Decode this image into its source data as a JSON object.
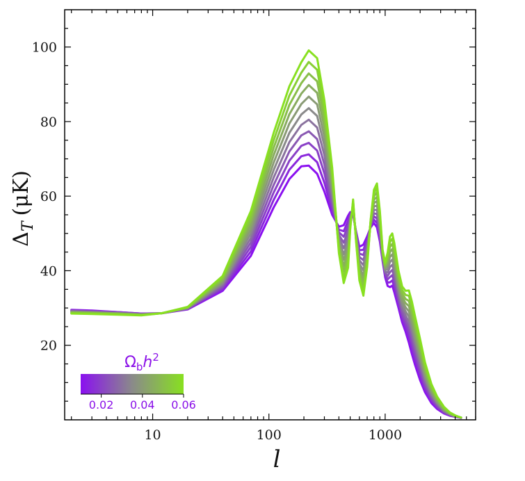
{
  "chart_data": {
    "type": "line",
    "x_scale": "log",
    "xlim": [
      1.75,
      6000
    ],
    "ylim": [
      0,
      110
    ],
    "xlabel": "l",
    "ylabel_main": "Δ",
    "ylabel_sub": "T",
    "ylabel_units": "(μK)",
    "x_ticks": [
      {
        "value": 10,
        "label": "10"
      },
      {
        "value": 100,
        "label": "100"
      },
      {
        "value": 1000,
        "label": "1000"
      }
    ],
    "y_ticks": [
      {
        "value": 20,
        "label": "20"
      },
      {
        "value": 40,
        "label": "40"
      },
      {
        "value": 60,
        "label": "60"
      },
      {
        "value": 80,
        "label": "80"
      },
      {
        "value": 100,
        "label": "100"
      }
    ],
    "colorbar": {
      "label_main": "Ω",
      "label_sub": "b",
      "label_var": "h",
      "label_sup": "2",
      "range": [
        0.01,
        0.06
      ],
      "color_low": "#8a10f0",
      "color_mid": "#8a8a8a",
      "color_high": "#88e020",
      "ticks": [
        {
          "value": 0.02,
          "label": "0.02"
        },
        {
          "value": 0.04,
          "label": "0.04"
        },
        {
          "value": 0.06,
          "label": "0.06"
        }
      ]
    },
    "series_x": [
      2,
      3,
      5,
      8,
      12,
      20,
      40,
      70,
      110,
      150,
      190,
      220,
      260,
      300,
      350,
      400,
      440,
      480,
      500,
      530,
      560,
      600,
      650,
      700,
      750,
      800,
      850,
      900,
      950,
      1000,
      1050,
      1100,
      1150,
      1200,
      1300,
      1400,
      1500,
      1600,
      1700,
      1800,
      2000,
      2200,
      2500,
      2800,
      3200,
      3600,
      4000,
      4500
    ],
    "series": [
      {
        "name": "Ωbh2=0.010",
        "param": 0.01,
        "values": [
          29.5,
          29.3,
          28.9,
          28.5,
          28.6,
          29.6,
          34.6,
          44.0,
          57.0,
          64.6,
          68.0,
          68.2,
          66.0,
          61.2,
          55.0,
          51.8,
          52.2,
          54.8,
          55.7,
          55.0,
          50.8,
          46.4,
          47.0,
          49.2,
          51.6,
          52.8,
          51.6,
          47.8,
          42.6,
          38.2,
          35.9,
          35.6,
          36.0,
          34.2,
          30.1,
          26.2,
          23.6,
          20.7,
          17.6,
          14.9,
          10.6,
          7.4,
          4.5,
          2.9,
          1.7,
          1.1,
          0.8,
          0.5
        ]
      },
      {
        "name": "Ωbh2=0.015",
        "param": 0.015,
        "values": [
          29.4,
          29.2,
          28.9,
          28.5,
          28.6,
          29.7,
          35.0,
          45.2,
          59.0,
          67.1,
          70.7,
          71.2,
          69.1,
          63.6,
          56.0,
          51.0,
          50.6,
          53.4,
          55.3,
          55.4,
          50.6,
          45.5,
          45.6,
          48.4,
          51.8,
          53.7,
          52.8,
          48.6,
          42.9,
          38.6,
          36.8,
          36.9,
          37.4,
          35.5,
          31.1,
          27.1,
          24.7,
          22.1,
          19.1,
          16.3,
          11.7,
          8.2,
          5.1,
          3.3,
          1.8,
          1.2,
          0.8,
          0.5
        ]
      },
      {
        "name": "Ωbh2=0.020",
        "param": 0.02,
        "values": [
          29.3,
          29.1,
          28.8,
          28.4,
          28.6,
          29.8,
          35.4,
          46.4,
          61.0,
          69.5,
          73.5,
          74.3,
          72.2,
          66.1,
          57.2,
          50.3,
          49.1,
          52.0,
          54.8,
          55.9,
          50.4,
          44.6,
          44.2,
          47.6,
          52.0,
          54.6,
          54.0,
          49.4,
          43.2,
          39.0,
          37.7,
          38.3,
          38.8,
          36.8,
          32.1,
          28.1,
          25.8,
          23.5,
          20.5,
          17.6,
          12.8,
          9.0,
          5.6,
          3.6,
          2.0,
          1.3,
          0.8,
          0.6
        ]
      },
      {
        "name": "Ωbh2=0.025",
        "param": 0.025,
        "values": [
          29.2,
          29.0,
          28.7,
          28.4,
          28.6,
          29.8,
          35.8,
          47.6,
          63.0,
          72.0,
          76.3,
          77.4,
          75.3,
          68.5,
          58.5,
          49.6,
          47.5,
          50.6,
          54.3,
          56.3,
          50.1,
          43.7,
          42.8,
          46.8,
          52.2,
          55.4,
          55.2,
          50.2,
          43.5,
          39.4,
          38.6,
          39.6,
          40.2,
          38.2,
          33.1,
          29.0,
          26.9,
          24.9,
          21.9,
          18.9,
          13.9,
          9.8,
          6.1,
          4.0,
          2.2,
          1.4,
          0.9,
          0.6
        ]
      },
      {
        "name": "Ωbh2=0.030",
        "param": 0.03,
        "values": [
          29.1,
          28.9,
          28.7,
          28.3,
          28.6,
          29.9,
          36.2,
          48.8,
          65.0,
          74.5,
          79.1,
          80.5,
          78.4,
          71.0,
          59.8,
          48.9,
          46.0,
          49.2,
          53.8,
          56.7,
          49.9,
          42.8,
          41.5,
          45.9,
          52.4,
          56.3,
          56.3,
          51.1,
          43.8,
          39.8,
          39.5,
          41.0,
          41.6,
          39.5,
          34.1,
          30.0,
          28.0,
          26.3,
          23.3,
          20.2,
          15.0,
          10.6,
          6.6,
          4.3,
          2.4,
          1.4,
          0.9,
          0.6
        ]
      },
      {
        "name": "Ωbh2=0.035",
        "param": 0.035,
        "values": [
          29.0,
          28.8,
          28.6,
          28.3,
          28.6,
          30.0,
          36.6,
          50.0,
          67.0,
          77.0,
          81.9,
          83.6,
          81.5,
          73.5,
          61.2,
          48.2,
          44.4,
          47.8,
          53.4,
          57.1,
          49.7,
          41.9,
          40.1,
          45.1,
          52.6,
          57.2,
          57.5,
          51.9,
          44.1,
          40.2,
          40.4,
          42.3,
          43.0,
          40.8,
          35.1,
          31.0,
          29.1,
          27.7,
          24.7,
          21.5,
          16.1,
          11.4,
          7.1,
          4.6,
          2.5,
          1.5,
          1.0,
          0.6
        ]
      },
      {
        "name": "Ωbh2=0.040",
        "param": 0.04,
        "values": [
          28.9,
          28.8,
          28.5,
          28.2,
          28.6,
          30.0,
          37.0,
          51.2,
          69.0,
          79.5,
          84.7,
          86.7,
          84.6,
          75.9,
          62.5,
          47.5,
          42.9,
          46.4,
          52.9,
          57.5,
          49.4,
          41.0,
          38.7,
          44.3,
          52.8,
          58.1,
          58.7,
          52.7,
          44.4,
          40.6,
          41.3,
          43.7,
          44.4,
          42.1,
          36.1,
          31.9,
          30.2,
          29.1,
          26.1,
          22.8,
          17.2,
          12.2,
          7.6,
          4.9,
          2.7,
          1.6,
          1.0,
          0.6
        ]
      },
      {
        "name": "Ωbh2=0.045",
        "param": 0.045,
        "values": [
          28.8,
          28.7,
          28.5,
          28.2,
          28.6,
          30.1,
          37.4,
          52.4,
          71.0,
          82.0,
          87.5,
          89.8,
          87.7,
          78.4,
          63.8,
          46.8,
          41.3,
          45.0,
          52.4,
          57.9,
          49.2,
          40.1,
          37.4,
          43.5,
          53.0,
          59.0,
          59.8,
          53.5,
          44.7,
          41.0,
          42.2,
          45.0,
          45.8,
          43.4,
          37.1,
          32.9,
          31.3,
          30.5,
          27.5,
          24.1,
          18.3,
          13.0,
          8.1,
          5.3,
          2.9,
          1.7,
          1.0,
          0.6
        ]
      },
      {
        "name": "Ωbh2=0.050",
        "param": 0.05,
        "values": [
          28.7,
          28.6,
          28.4,
          28.1,
          28.6,
          30.2,
          37.8,
          53.6,
          73.0,
          84.5,
          90.3,
          92.9,
          90.8,
          80.8,
          65.1,
          46.1,
          39.8,
          43.6,
          51.9,
          58.3,
          48.9,
          39.2,
          36.0,
          42.6,
          53.2,
          59.9,
          61.0,
          54.4,
          45.0,
          41.4,
          43.1,
          46.4,
          47.2,
          44.8,
          38.1,
          33.9,
          32.4,
          31.9,
          28.9,
          25.4,
          19.4,
          13.8,
          8.6,
          5.6,
          3.1,
          1.8,
          1.1,
          0.6
        ]
      },
      {
        "name": "Ωbh2=0.055",
        "param": 0.055,
        "values": [
          28.6,
          28.5,
          28.3,
          28.1,
          28.6,
          30.2,
          38.2,
          54.8,
          75.0,
          87.0,
          93.1,
          96.0,
          93.9,
          83.3,
          66.4,
          45.4,
          38.2,
          42.2,
          51.5,
          58.7,
          48.7,
          38.3,
          34.6,
          41.8,
          53.4,
          60.8,
          62.2,
          55.2,
          45.3,
          41.8,
          44.0,
          47.7,
          48.6,
          46.1,
          39.1,
          34.8,
          33.5,
          33.3,
          30.3,
          26.7,
          20.5,
          14.6,
          9.1,
          5.9,
          3.3,
          1.9,
          1.1,
          0.6
        ]
      },
      {
        "name": "Ωbh2=0.060",
        "param": 0.06,
        "values": [
          28.5,
          28.4,
          28.2,
          28.0,
          28.6,
          30.3,
          38.6,
          56.0,
          77.0,
          89.5,
          95.9,
          99.1,
          97.0,
          85.7,
          67.7,
          44.7,
          36.7,
          40.8,
          51.0,
          59.1,
          48.4,
          37.4,
          33.3,
          41.0,
          53.6,
          61.7,
          63.4,
          56.0,
          45.6,
          42.2,
          44.9,
          49.1,
          50.0,
          47.4,
          40.1,
          35.8,
          34.6,
          34.7,
          31.7,
          28.0,
          21.6,
          15.4,
          9.6,
          6.2,
          3.5,
          2.0,
          1.2,
          0.6
        ]
      }
    ]
  }
}
